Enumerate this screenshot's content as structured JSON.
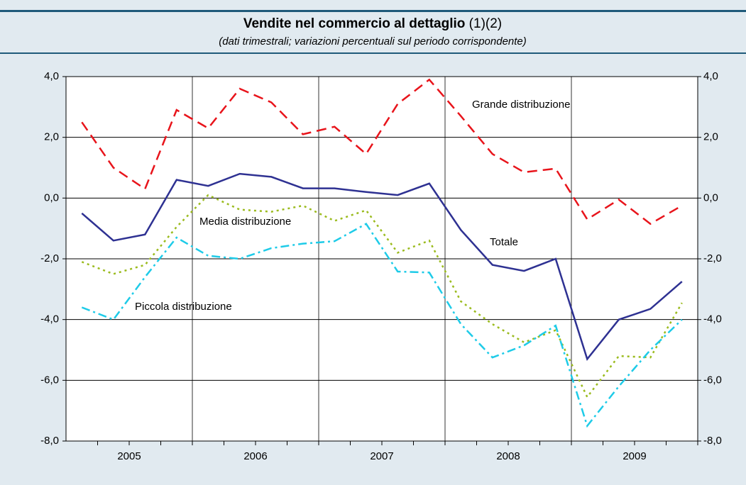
{
  "chart_data": {
    "type": "line",
    "title": "Vendite nel commercio al dettaglio",
    "title_notes": "(1)(2)",
    "subtitle": "(dati trimestrali; variazioni percentuali sul periodo corrispondente)",
    "years": [
      "2005",
      "2006",
      "2007",
      "2008",
      "2009"
    ],
    "ylim": [
      -8,
      4
    ],
    "yticks": [
      {
        "value": -8,
        "label": "-8,0"
      },
      {
        "value": -6,
        "label": "-6,0"
      },
      {
        "value": -4,
        "label": "-4,0"
      },
      {
        "value": -2,
        "label": "-2,0"
      },
      {
        "value": 0,
        "label": "0,0"
      },
      {
        "value": 2,
        "label": "2,0"
      },
      {
        "value": 4,
        "label": "4,0"
      }
    ],
    "grid": true,
    "series": [
      {
        "name": "Totale",
        "color": "#2e3192",
        "style": "solid",
        "values": [
          -0.5,
          -1.4,
          -1.2,
          0.6,
          0.4,
          0.8,
          0.7,
          0.32,
          0.32,
          0.2,
          0.1,
          0.48,
          -1.05,
          -2.2,
          -2.4,
          -2.0,
          -5.3,
          -4.0,
          -3.65,
          -2.75
        ]
      },
      {
        "name": "Grande distribuzione",
        "color": "#e8141b",
        "style": "dashed",
        "values": [
          2.5,
          1.0,
          0.3,
          2.9,
          2.3,
          3.6,
          3.15,
          2.1,
          2.35,
          1.45,
          3.1,
          3.9,
          2.7,
          1.45,
          0.85,
          0.97,
          -0.7,
          -0.05,
          -0.85,
          -0.25
        ]
      },
      {
        "name": "Media distribuzione",
        "color": "#9bbb1e",
        "style": "dotted",
        "values": [
          -2.1,
          -2.5,
          -2.2,
          -0.95,
          0.1,
          -0.38,
          -0.45,
          -0.25,
          -0.75,
          -0.4,
          -1.8,
          -1.4,
          -3.4,
          -4.15,
          -4.75,
          -4.35,
          -6.55,
          -5.2,
          -5.25,
          -3.45
        ]
      },
      {
        "name": "Piccola distribuzione",
        "color": "#1ecbe8",
        "style": "dashdot",
        "values": [
          -3.6,
          -4.0,
          -2.6,
          -1.3,
          -1.9,
          -2.0,
          -1.65,
          -1.5,
          -1.42,
          -0.85,
          -2.42,
          -2.45,
          -4.15,
          -5.25,
          -4.85,
          -4.2,
          -7.5,
          -6.2,
          -5.0,
          -4.0
        ]
      }
    ]
  }
}
